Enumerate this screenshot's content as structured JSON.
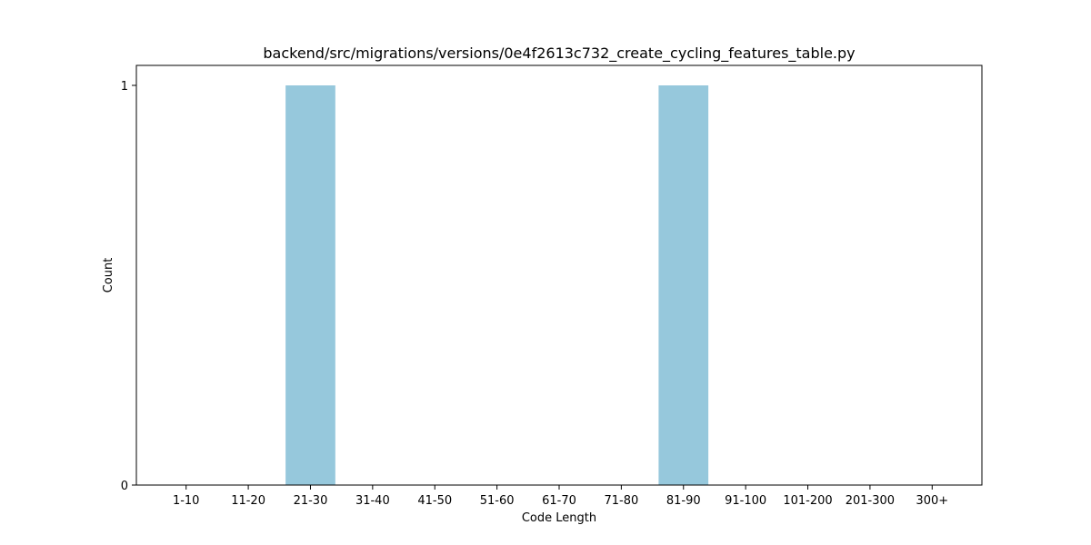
{
  "chart_data": {
    "type": "bar",
    "title": "backend/src/migrations/versions/0e4f2613c732_create_cycling_features_table.py",
    "xlabel": "Code Length",
    "ylabel": "Count",
    "categories": [
      "1-10",
      "11-20",
      "21-30",
      "31-40",
      "41-50",
      "51-60",
      "61-70",
      "71-80",
      "81-90",
      "91-100",
      "101-200",
      "201-300",
      "300+"
    ],
    "values": [
      0,
      0,
      1,
      0,
      0,
      0,
      0,
      0,
      1,
      0,
      0,
      0,
      0
    ],
    "ylim": [
      0,
      1.05
    ],
    "yticks": [
      0,
      1
    ],
    "bar_color": "#96c8dc",
    "grid": false,
    "legend": "none"
  }
}
